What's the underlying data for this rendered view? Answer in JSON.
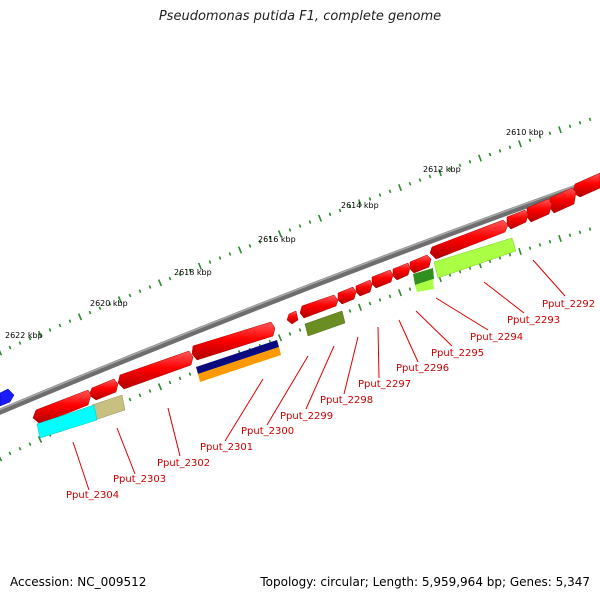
{
  "title": "Pseudomonas putida F1, complete genome",
  "colors": {
    "backbone": "#7a7a7a",
    "gene": "#ff0000",
    "tick": "#2e8b2e",
    "leader": "#e00000",
    "label": "#cc0000"
  },
  "scale_labels": [
    "2610 kbp",
    "2612 kbp",
    "2614 kbp",
    "2616 kbp",
    "2618 kbp",
    "2620 kbp",
    "2622 kbp"
  ],
  "gene_labels": [
    "Pput_2292",
    "Pput_2293",
    "Pput_2294",
    "Pput_2295",
    "Pput_2296",
    "Pput_2297",
    "Pput_2298",
    "Pput_2299",
    "Pput_2300",
    "Pput_2301",
    "Pput_2302",
    "Pput_2303",
    "Pput_2304"
  ],
  "footer": {
    "accession": "Accession: NC_009512",
    "summary": "Topology: circular; Length: 5,959,964 bp; Genes: 5,347"
  }
}
